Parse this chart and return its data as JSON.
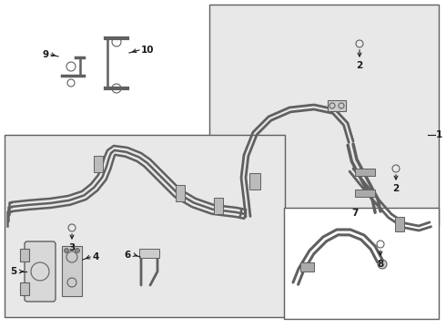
{
  "bg": "#ffffff",
  "gray_fill": "#e8e8e8",
  "lc": "#606060",
  "dk": "#1a1a1a",
  "lw_pipe": 1.8,
  "lw_thin": 1.0,
  "fs": 7.5
}
